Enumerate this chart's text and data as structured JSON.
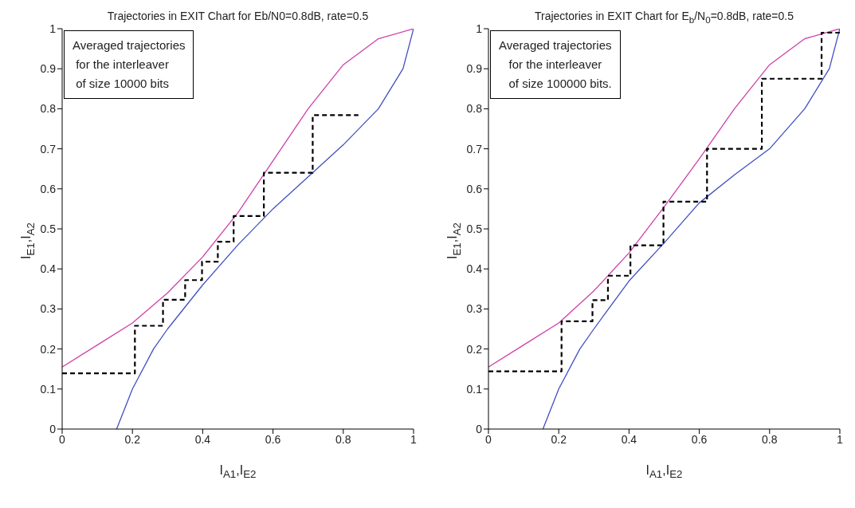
{
  "chart_data": [
    {
      "type": "line",
      "title": "Trajectories in EXIT Chart for Eb/N0=0.8dB, rate=0.5",
      "xlabel": "I$_{A1}$,I$_{E2}$",
      "ylabel": "I$_{E1}$,I$_{A2}$",
      "xlim": [
        0,
        1
      ],
      "ylim": [
        0,
        1
      ],
      "xticks": [
        0,
        0.2,
        0.4,
        0.6,
        0.8,
        1
      ],
      "yticks": [
        0,
        0.1,
        0.2,
        0.3,
        0.4,
        0.5,
        0.6,
        0.7,
        0.8,
        0.9,
        1
      ],
      "grid": false,
      "legend": false,
      "annotations": [
        "Averaged trajectories\n for the interleaver\n of size 10000 bits"
      ],
      "series": [
        {
          "color": "#d040a8",
          "line_style": "solid",
          "x": [
            0,
            0.1,
            0.2,
            0.3,
            0.4,
            0.5,
            0.6,
            0.7,
            0.8,
            0.9,
            1
          ],
          "values": [
            0.155,
            0.21,
            0.265,
            0.34,
            0.43,
            0.54,
            0.67,
            0.8,
            0.91,
            0.975,
            1
          ]
        },
        {
          "color": "#4050c0",
          "line_style": "solid",
          "x": [
            0.155,
            0.2,
            0.26,
            0.3,
            0.4,
            0.5,
            0.6,
            0.7,
            0.8,
            0.9,
            0.97,
            1
          ],
          "values": [
            0,
            0.1,
            0.2,
            0.25,
            0.36,
            0.46,
            0.55,
            0.63,
            0.71,
            0.8,
            0.9,
            1
          ]
        },
        {
          "color": "#000000",
          "line_style": "dashed",
          "x": [
            0,
            0.207,
            0.207,
            0.287,
            0.287,
            0.35,
            0.35,
            0.398,
            0.398,
            0.443,
            0.443,
            0.488,
            0.488,
            0.574,
            0.574,
            0.713,
            0.713,
            0.843
          ],
          "values": [
            0.139,
            0.139,
            0.258,
            0.258,
            0.323,
            0.323,
            0.372,
            0.372,
            0.418,
            0.418,
            0.468,
            0.468,
            0.532,
            0.532,
            0.64,
            0.64,
            0.784,
            0.784
          ]
        }
      ]
    },
    {
      "type": "line",
      "title": "Trajectories in EXIT Chart for E$_{b}$/N$_{0}$=0.8dB, rate=0.5",
      "xlabel": "I$_{A1}$,I$_{E2}$",
      "ylabel": "I$_{E1}$,I$_{A2}$",
      "xlim": [
        0,
        1
      ],
      "ylim": [
        0,
        1
      ],
      "xticks": [
        0,
        0.2,
        0.4,
        0.6,
        0.8,
        1
      ],
      "yticks": [
        0,
        0.1,
        0.2,
        0.3,
        0.4,
        0.5,
        0.6,
        0.7,
        0.8,
        0.9,
        1
      ],
      "grid": false,
      "legend": false,
      "annotations": [
        "Averaged trajectories\n   for the interleaver\n   of size 100000 bits."
      ],
      "series": [
        {
          "color": "#d040a8",
          "line_style": "solid",
          "x": [
            0,
            0.1,
            0.2,
            0.3,
            0.4,
            0.5,
            0.6,
            0.7,
            0.8,
            0.9,
            1
          ],
          "values": [
            0.155,
            0.21,
            0.265,
            0.345,
            0.44,
            0.555,
            0.675,
            0.8,
            0.91,
            0.975,
            1
          ]
        },
        {
          "color": "#4050c0",
          "line_style": "solid",
          "x": [
            0.155,
            0.2,
            0.26,
            0.3,
            0.4,
            0.5,
            0.6,
            0.7,
            0.8,
            0.9,
            0.97,
            1
          ],
          "values": [
            0,
            0.1,
            0.2,
            0.25,
            0.37,
            0.465,
            0.565,
            0.635,
            0.7,
            0.8,
            0.9,
            1
          ]
        },
        {
          "color": "#000000",
          "line_style": "dashed",
          "x": [
            0,
            0.208,
            0.208,
            0.296,
            0.296,
            0.34,
            0.34,
            0.404,
            0.404,
            0.498,
            0.498,
            0.622,
            0.622,
            0.778,
            0.778,
            0.948,
            0.948,
            1
          ],
          "values": [
            0.144,
            0.144,
            0.269,
            0.269,
            0.322,
            0.322,
            0.383,
            0.383,
            0.459,
            0.459,
            0.568,
            0.568,
            0.7,
            0.7,
            0.875,
            0.875,
            0.99,
            0.99
          ]
        }
      ]
    }
  ]
}
